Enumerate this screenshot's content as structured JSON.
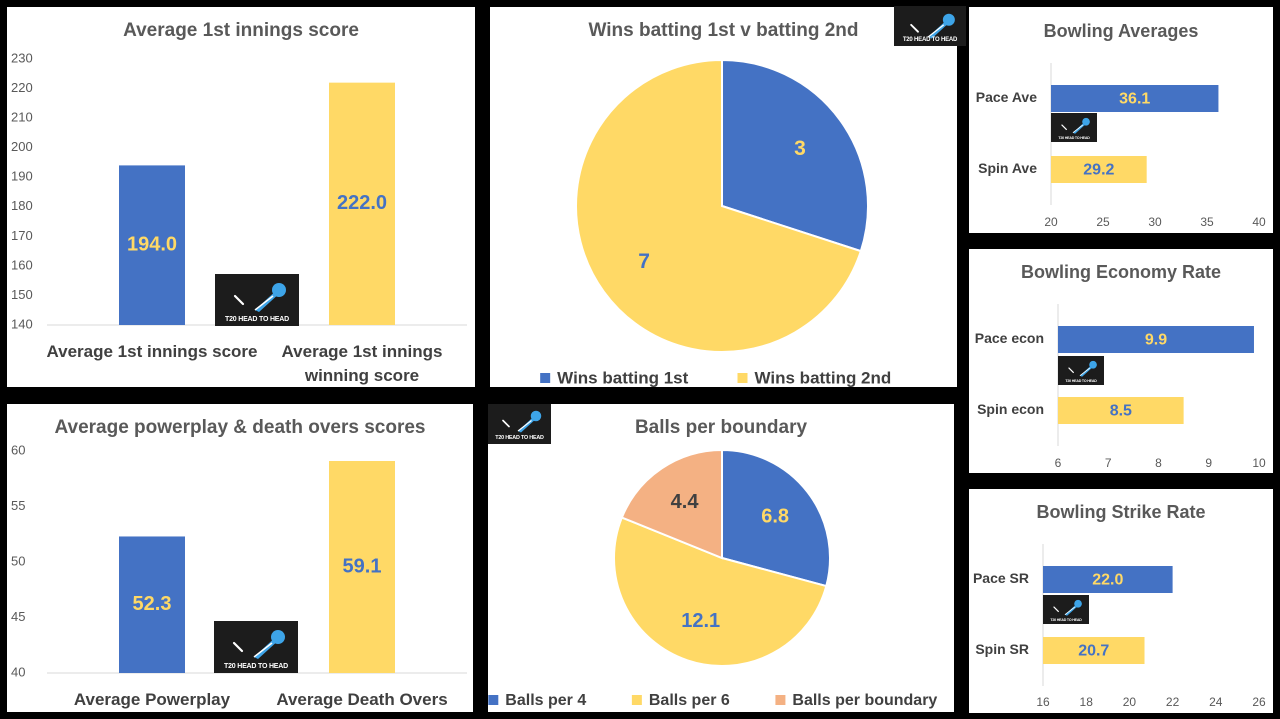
{
  "colors": {
    "blue": "#4472C4",
    "yellow": "#FFD966",
    "peach": "#F4B183",
    "blue_text": "#4472C4",
    "yellow_text": "#FFD966",
    "dark_text": "#404040"
  },
  "logo": {
    "text": "T20 HEAD TO HEAD",
    "icon": "cricket-ball-bat-icon"
  },
  "chart_data": [
    {
      "id": "first-innings",
      "type": "bar",
      "title": "Average 1st innings score",
      "categories": [
        "Average 1st innings score",
        "Average 1st innings winning score"
      ],
      "category_lines": [
        [
          "Average 1st innings score"
        ],
        [
          "Average 1st innings",
          "winning score"
        ]
      ],
      "values": [
        194.0,
        222.0
      ],
      "labels": [
        "194.0",
        "222.0"
      ],
      "colors": [
        "blue",
        "yellow"
      ],
      "label_colors": [
        "yellow",
        "blue"
      ],
      "ylim": [
        140,
        230
      ],
      "ticks": [
        140,
        150,
        160,
        170,
        180,
        190,
        200,
        210,
        220,
        230
      ],
      "grid": false
    },
    {
      "id": "wins-pie",
      "type": "pie",
      "title": "Wins batting 1st v batting 2nd",
      "categories": [
        "Wins batting 1st",
        "Wins batting 2nd"
      ],
      "values": [
        3,
        7
      ],
      "labels": [
        "3",
        "7"
      ],
      "colors": [
        "blue",
        "yellow"
      ],
      "label_colors": [
        "yellow",
        "blue"
      ],
      "legend": "bottom"
    },
    {
      "id": "powerplay-death",
      "type": "bar",
      "title": "Average powerplay & death overs scores",
      "categories": [
        "Average Powerplay",
        "Average Death Overs"
      ],
      "category_lines": [
        [
          "Average Powerplay"
        ],
        [
          "Average Death Overs"
        ]
      ],
      "values": [
        52.3,
        59.1
      ],
      "labels": [
        "52.3",
        "59.1"
      ],
      "colors": [
        "blue",
        "yellow"
      ],
      "label_colors": [
        "yellow",
        "blue"
      ],
      "ylim": [
        40,
        60
      ],
      "ticks": [
        40,
        45,
        50,
        55,
        60
      ],
      "grid": false
    },
    {
      "id": "balls-boundary",
      "type": "pie",
      "title": "Balls per boundary",
      "categories": [
        "Balls per 4",
        "Balls per 6",
        "Balls per boundary"
      ],
      "values": [
        6.8,
        12.1,
        4.4
      ],
      "labels": [
        "6.8",
        "12.1",
        "4.4"
      ],
      "colors": [
        "blue",
        "yellow",
        "peach"
      ],
      "label_colors": [
        "yellow",
        "blue",
        "dark_text"
      ],
      "legend": "bottom"
    },
    {
      "id": "bowling-ave",
      "type": "bar",
      "orientation": "horizontal",
      "title": "Bowling Averages",
      "categories": [
        "Pace Ave",
        "Spin Ave"
      ],
      "values": [
        36.1,
        29.2
      ],
      "labels": [
        "36.1",
        "29.2"
      ],
      "colors": [
        "blue",
        "yellow"
      ],
      "label_colors": [
        "yellow",
        "blue"
      ],
      "xlim": [
        20,
        40
      ],
      "ticks": [
        20,
        25,
        30,
        35,
        40
      ]
    },
    {
      "id": "bowling-econ",
      "type": "bar",
      "orientation": "horizontal",
      "title": "Bowling Economy Rate",
      "categories": [
        "Pace econ",
        "Spin econ"
      ],
      "values": [
        9.9,
        8.5
      ],
      "labels": [
        "9.9",
        "8.5"
      ],
      "colors": [
        "blue",
        "yellow"
      ],
      "label_colors": [
        "yellow",
        "blue"
      ],
      "xlim": [
        6,
        10
      ],
      "ticks": [
        6,
        7,
        8,
        9,
        10
      ]
    },
    {
      "id": "bowling-sr",
      "type": "bar",
      "orientation": "horizontal",
      "title": "Bowling Strike Rate",
      "categories": [
        "Pace SR",
        "Spin SR"
      ],
      "values": [
        22.0,
        20.7
      ],
      "labels": [
        "22.0",
        "20.7"
      ],
      "colors": [
        "blue",
        "yellow"
      ],
      "label_colors": [
        "yellow",
        "blue"
      ],
      "xlim": [
        16,
        26
      ],
      "ticks": [
        16,
        18,
        20,
        22,
        24,
        26
      ]
    }
  ]
}
